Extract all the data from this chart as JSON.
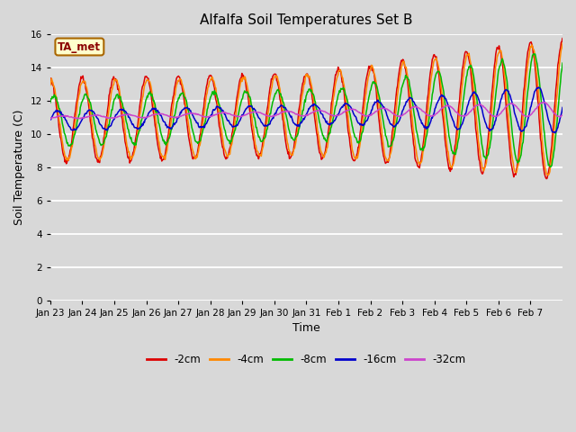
{
  "title": "Alfalfa Soil Temperatures Set B",
  "xlabel": "Time",
  "ylabel": "Soil Temperature (C)",
  "ylim": [
    0,
    16
  ],
  "yticks": [
    0,
    2,
    4,
    6,
    8,
    10,
    12,
    14,
    16
  ],
  "background_color": "#d8d8d8",
  "plot_bg_color": "#d8d8d8",
  "legend_label": "TA_met",
  "series_labels": [
    "-2cm",
    "-4cm",
    "-8cm",
    "-16cm",
    "-32cm"
  ],
  "series_colors": [
    "#dd0000",
    "#ff8800",
    "#00bb00",
    "#0000cc",
    "#cc44cc"
  ],
  "n_days": 16,
  "x_tick_labels": [
    "Jan 23",
    "Jan 24",
    "Jan 25",
    "Jan 26",
    "Jan 27",
    "Jan 28",
    "Jan 29",
    "Jan 30",
    "Jan 31",
    "Feb 1",
    "Feb 2",
    "Feb 3",
    "Feb 4",
    "Feb 5",
    "Feb 6",
    "Feb 7"
  ],
  "title_fontsize": 11,
  "axis_label_fontsize": 9,
  "tick_fontsize": 7.5
}
